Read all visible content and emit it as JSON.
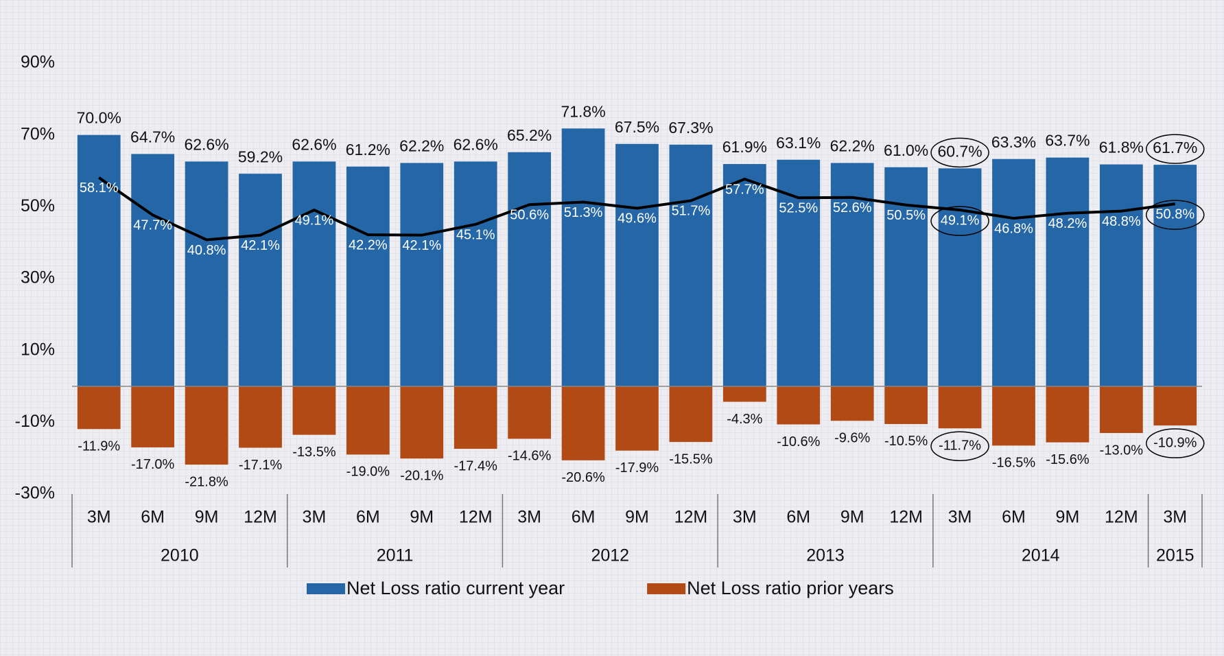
{
  "chart_data": {
    "type": "bar",
    "groups": [
      {
        "label": "2010",
        "categories": [
          "3M",
          "6M",
          "9M",
          "12M"
        ]
      },
      {
        "label": "2011",
        "categories": [
          "3M",
          "6M",
          "9M",
          "12M"
        ]
      },
      {
        "label": "2012",
        "categories": [
          "3M",
          "6M",
          "9M",
          "12M"
        ]
      },
      {
        "label": "2013",
        "categories": [
          "3M",
          "6M",
          "9M",
          "12M"
        ]
      },
      {
        "label": "2014",
        "categories": [
          "3M",
          "6M",
          "9M",
          "12M"
        ]
      },
      {
        "label": "2015",
        "categories": [
          "3M"
        ]
      }
    ],
    "series": [
      {
        "name": "Net Loss ratio current year",
        "color": "#2566a6",
        "values": [
          70.0,
          64.7,
          62.6,
          59.2,
          62.6,
          61.2,
          62.2,
          62.6,
          65.2,
          71.8,
          67.5,
          67.3,
          61.9,
          63.1,
          62.2,
          61.0,
          60.7,
          63.3,
          63.7,
          61.8,
          61.7
        ],
        "value_labels": [
          "70.0%",
          "64.7%",
          "62.6%",
          "59.2%",
          "62.6%",
          "61.2%",
          "62.2%",
          "62.6%",
          "65.2%",
          "71.8%",
          "67.5%",
          "67.3%",
          "61.9%",
          "63.1%",
          "62.2%",
          "61.0%",
          "60.7%",
          "63.3%",
          "63.7%",
          "61.8%",
          "61.7%"
        ]
      },
      {
        "name": "Net Loss ratio prior years",
        "color": "#b14a15",
        "values": [
          -11.9,
          -17.0,
          -21.8,
          -17.1,
          -13.5,
          -19.0,
          -20.1,
          -17.4,
          -14.6,
          -20.6,
          -17.9,
          -15.5,
          -4.3,
          -10.6,
          -9.6,
          -10.5,
          -11.7,
          -16.5,
          -15.6,
          -13.0,
          -10.9
        ],
        "value_labels": [
          "-11.9%",
          "-17.0%",
          "-21.8%",
          "-17.1%",
          "-13.5%",
          "-19.0%",
          "-20.1%",
          "-17.4%",
          "-14.6%",
          "-20.6%",
          "-17.9%",
          "-15.5%",
          "-4.3%",
          "-10.6%",
          "-9.6%",
          "-10.5%",
          "-11.7%",
          "-16.5%",
          "-15.6%",
          "-13.0%",
          "-10.9%"
        ]
      },
      {
        "type": "line",
        "color": "#000000",
        "values": [
          58.1,
          47.7,
          40.8,
          42.1,
          49.1,
          42.2,
          42.1,
          45.1,
          50.6,
          51.3,
          49.6,
          51.7,
          57.7,
          52.5,
          52.6,
          50.5,
          49.1,
          46.8,
          48.2,
          48.8,
          50.8
        ],
        "value_labels": [
          "58.1%",
          "47.7%",
          "40.8%",
          "42.1%",
          "49.1%",
          "42.2%",
          "42.1%",
          "45.1%",
          "50.6%",
          "51.3%",
          "49.6%",
          "51.7%",
          "57.7%",
          "52.5%",
          "52.6%",
          "50.5%",
          "49.1%",
          "46.8%",
          "48.2%",
          "48.8%",
          "50.8%"
        ]
      }
    ],
    "ylim": [
      -30,
      90
    ],
    "yticks": [
      {
        "value": 90,
        "label": "90%"
      },
      {
        "value": 70,
        "label": "70%"
      },
      {
        "value": 50,
        "label": "50%"
      },
      {
        "value": 30,
        "label": "30%"
      },
      {
        "value": 10,
        "label": "10%"
      },
      {
        "value": -10,
        "label": "-10%"
      },
      {
        "value": -30,
        "label": "-30%"
      }
    ]
  }
}
